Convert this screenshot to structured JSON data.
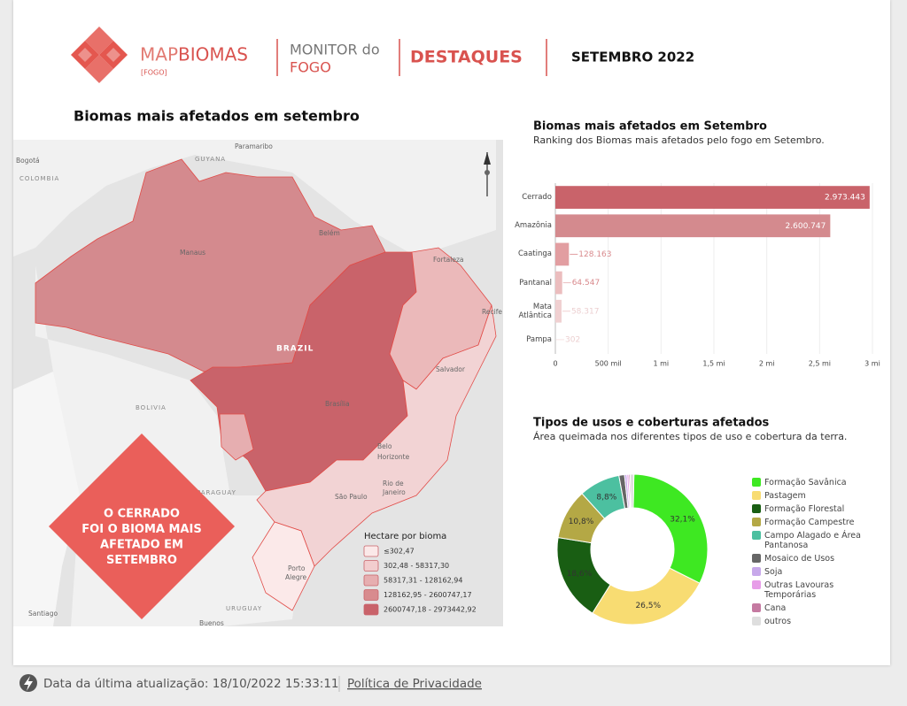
{
  "header": {
    "brand_prefix": "MAP",
    "brand_main": "BIOMAS",
    "brand_tag": "[FOGO]",
    "monitor": "MONITOR do",
    "monitor_fire": "FOGO",
    "section": "DESTAQUES",
    "period": "SETEMBRO 2022"
  },
  "map": {
    "title": "Biomas mais afetados em setembro",
    "places": [
      "Bogotá",
      "COLOMBIA",
      "GUYANA",
      "Paramaribo",
      "Belém",
      "Manaus",
      "Fortaleza",
      "Recife",
      "BRAZIL",
      "Salvador",
      "BOLIVIA",
      "Brasília",
      "Belo",
      "Horizonte",
      "Rio de",
      "Janeiro",
      "São Paulo",
      "PARAGUAY",
      "Porto",
      "Alegre",
      "URUGUAY",
      "Santiago",
      "Buenos"
    ],
    "callout": [
      "O CERRADO",
      "FOI O BIOMA MAIS",
      "AFETADO EM",
      "SETEMBRO"
    ],
    "legend_title": "Hectare por bioma",
    "legend": [
      {
        "label": "≤302,47",
        "color": "#fbe9e9"
      },
      {
        "label": "302,48 - 58317,30",
        "color": "#f2cdce"
      },
      {
        "label": "58317,31 - 128162,94",
        "color": "#e6aeb0"
      },
      {
        "label": "128162,95 - 2600747,17",
        "color": "#d88b8e"
      },
      {
        "label": "2600747,18 - 2973442,92",
        "color": "#c9636a"
      }
    ]
  },
  "chart_data": [
    {
      "type": "hbar",
      "title": "Biomas mais afetados em Setembro",
      "subtitle": "Ranking dos Biomas mais afetados pelo fogo em Setembro.",
      "categories": [
        "Cerrado",
        "Amazônia",
        "Caatinga",
        "Pantanal",
        "Mata Atlântica",
        "Pampa"
      ],
      "values": [
        2973443,
        2600747,
        128163,
        64547,
        58317,
        302
      ],
      "value_labels": [
        "2.973.443",
        "2.600.747",
        "128.163",
        "64.547",
        "58.317",
        "302"
      ],
      "colors": [
        "#c9636a",
        "#d48a8e",
        "#e29ea1",
        "#ebbdbe",
        "#f0d0d1",
        "#f7e2e2"
      ],
      "xlim": [
        0,
        3000000
      ],
      "xticks": [
        0,
        {
          "value": 500000,
          "label": "500 mil"
        },
        {
          "value": 1000000,
          "label": "1 mi"
        },
        {
          "value": 1500000,
          "label": "1,5 mi"
        },
        {
          "value": 2000000,
          "label": "2 mi"
        },
        {
          "value": 2500000,
          "label": "2,5 mi"
        },
        {
          "value": 3000000,
          "label": "3 mi"
        }
      ],
      "grid": true
    },
    {
      "type": "donut",
      "title": "Tipos de usos e coberturas afetados",
      "subtitle": "Área queimada nos diferentes tipos de uso e cobertura da terra.",
      "categories": [
        "Formação Savânica",
        "Pastagem",
        "Formação Florestal",
        "Formação Campestre",
        "Campo Alagado e Área Pantanosa",
        "Mosaico de Usos",
        "Soja",
        "Outras Lavouras Temporárias",
        "Cana",
        "outros"
      ],
      "values": [
        32.1,
        26.5,
        18.6,
        10.8,
        8.8,
        1.2,
        0.5,
        0.4,
        0.3,
        0.8
      ],
      "value_labels": [
        "32,1%",
        "26,5%",
        "18,6%",
        "10,8%",
        "8,8%",
        null,
        null,
        null,
        null,
        null
      ],
      "colors": [
        "#3ee822",
        "#f8dc72",
        "#195e13",
        "#b4a845",
        "#4cc0a0",
        "#666666",
        "#c7a8ea",
        "#e79de8",
        "#c57aa1",
        "#dedede"
      ]
    }
  ],
  "footer": {
    "update": "Data da última atualização: 18/10/2022 15:33:11",
    "privacy": "Política de Privacidade"
  }
}
